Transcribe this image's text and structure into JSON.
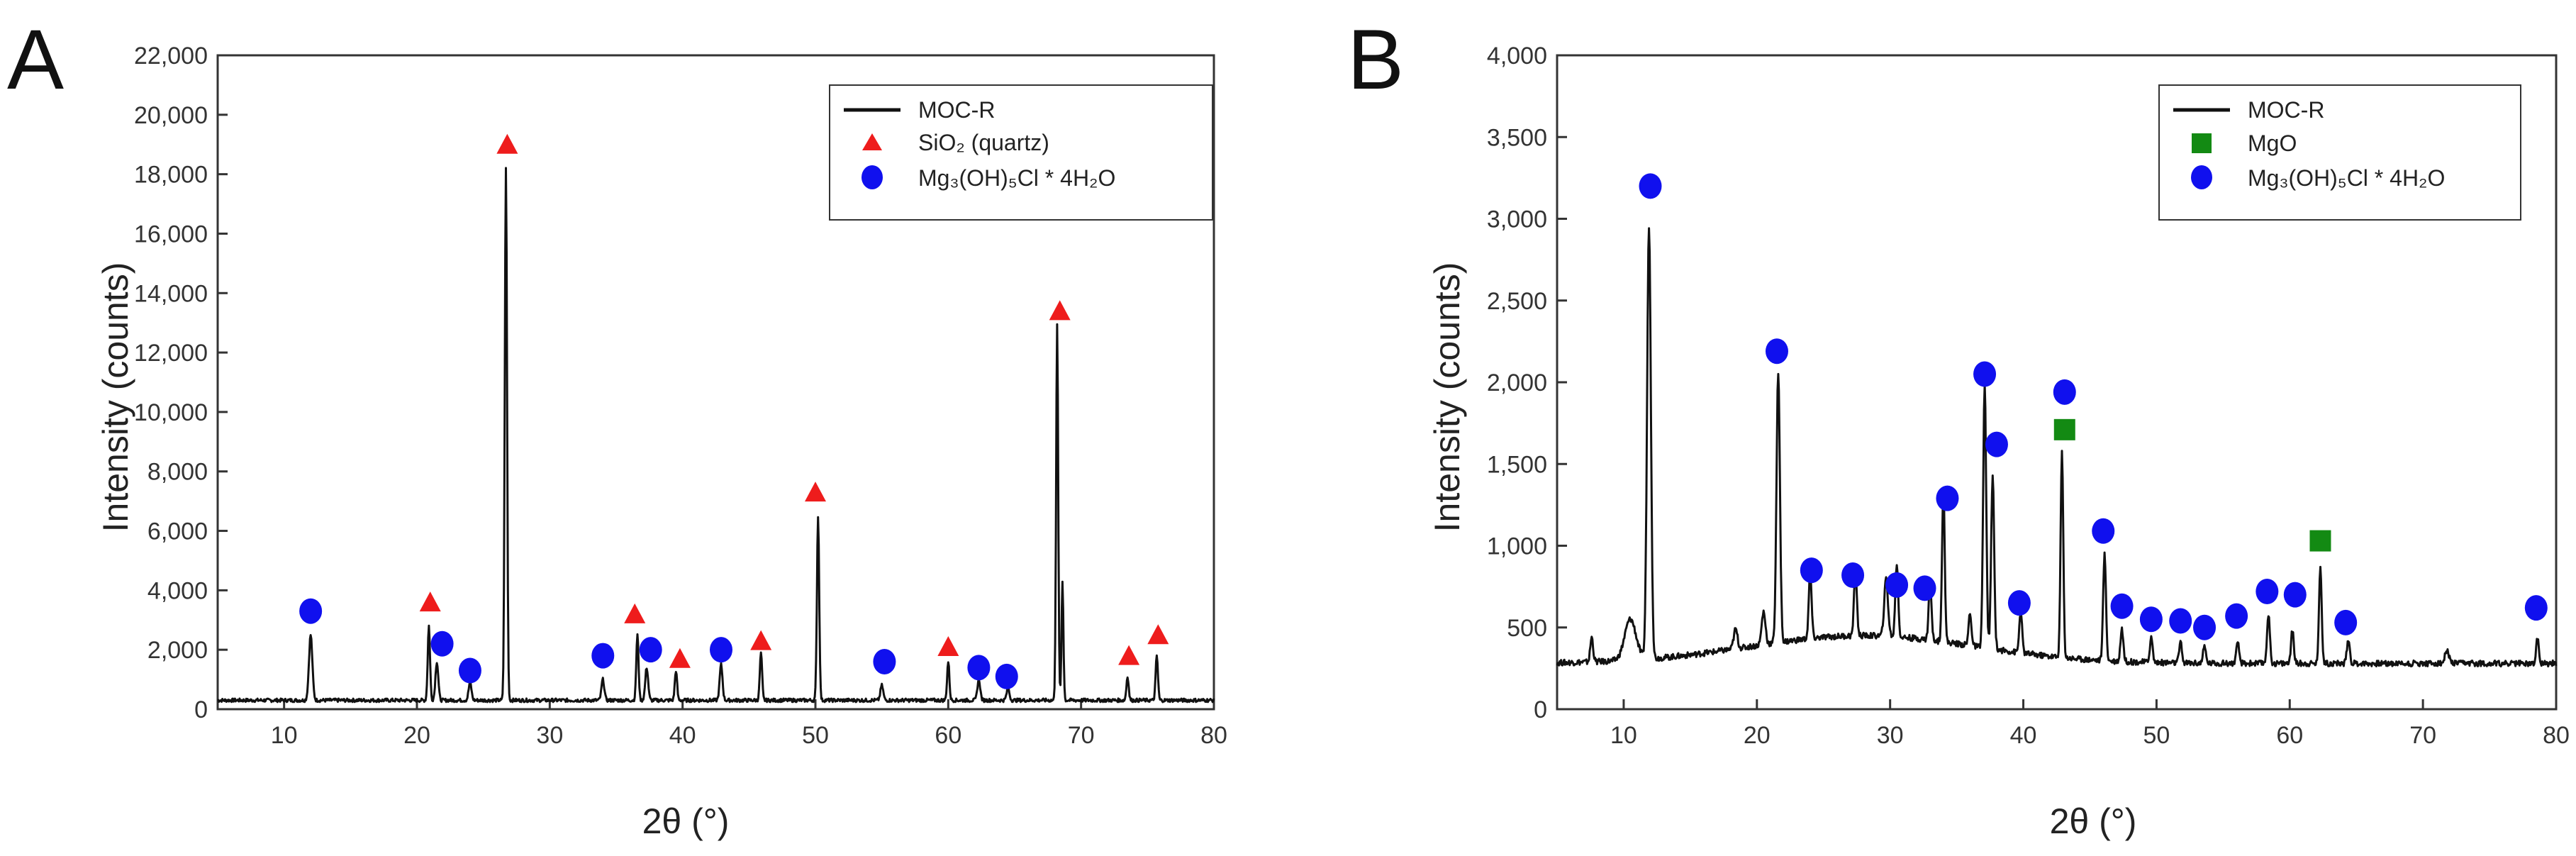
{
  "chart_data": [
    {
      "type": "line",
      "panel_label": "A",
      "title": "",
      "xlabel": "2θ (°)",
      "ylabel": "Intensity (counts)",
      "xlim": [
        5,
        80
      ],
      "ylim": [
        0,
        22000
      ],
      "x_ticks": [
        10,
        20,
        30,
        40,
        50,
        60,
        70,
        80
      ],
      "y_ticks": [
        0,
        2000,
        4000,
        6000,
        8000,
        10000,
        12000,
        14000,
        16000,
        18000,
        20000,
        22000
      ],
      "y_tick_labels": [
        "0",
        "2,000",
        "4,000",
        "6,000",
        "8,000",
        "10,000",
        "12,000",
        "14,000",
        "16,000",
        "18,000",
        "20,000",
        "22,000"
      ],
      "legend": {
        "placement": "top-right",
        "entries": [
          {
            "label": "MOC-R",
            "marker": "line",
            "color": "#111111"
          },
          {
            "label": "SiO₂ (quartz)",
            "marker": "triangle",
            "color": "#ee1c1c"
          },
          {
            "label": "Mg₃(OH)₅Cl * 4H₂O",
            "marker": "circle",
            "color": "#1010ee"
          }
        ]
      },
      "series": [
        {
          "name": "MOC-R",
          "color": "#111111",
          "baseline": 300,
          "noise": 60,
          "peaks": [
            {
              "x": 12.0,
              "y": 2200,
              "w": 0.18
            },
            {
              "x": 20.9,
              "y": 2500,
              "w": 0.12
            },
            {
              "x": 21.5,
              "y": 1300,
              "w": 0.15
            },
            {
              "x": 24.0,
              "y": 600,
              "w": 0.15
            },
            {
              "x": 26.7,
              "y": 17900,
              "w": 0.12
            },
            {
              "x": 34.0,
              "y": 700,
              "w": 0.15
            },
            {
              "x": 36.6,
              "y": 2200,
              "w": 0.12
            },
            {
              "x": 37.3,
              "y": 1100,
              "w": 0.15
            },
            {
              "x": 39.5,
              "y": 1000,
              "w": 0.12
            },
            {
              "x": 42.9,
              "y": 1200,
              "w": 0.15
            },
            {
              "x": 45.9,
              "y": 1600,
              "w": 0.12
            },
            {
              "x": 50.2,
              "y": 6200,
              "w": 0.12
            },
            {
              "x": 55.0,
              "y": 500,
              "w": 0.15
            },
            {
              "x": 60.0,
              "y": 1300,
              "w": 0.12
            },
            {
              "x": 62.3,
              "y": 700,
              "w": 0.15
            },
            {
              "x": 64.5,
              "y": 400,
              "w": 0.15
            },
            {
              "x": 68.2,
              "y": 12600,
              "w": 0.11
            },
            {
              "x": 68.6,
              "y": 4000,
              "w": 0.1
            },
            {
              "x": 73.5,
              "y": 800,
              "w": 0.12
            },
            {
              "x": 75.7,
              "y": 1500,
              "w": 0.12
            }
          ]
        }
      ],
      "markers": [
        {
          "phase": "Mg₃(OH)₅Cl * 4H₂O",
          "shape": "circle",
          "x": 12.0,
          "y": 3300
        },
        {
          "phase": "SiO₂ (quartz)",
          "shape": "triangle",
          "x": 21.0,
          "y": 3600
        },
        {
          "phase": "Mg₃(OH)₅Cl * 4H₂O",
          "shape": "circle",
          "x": 21.9,
          "y": 2200
        },
        {
          "phase": "Mg₃(OH)₅Cl * 4H₂O",
          "shape": "circle",
          "x": 24.0,
          "y": 1300
        },
        {
          "phase": "SiO₂ (quartz)",
          "shape": "triangle",
          "x": 26.8,
          "y": 19000
        },
        {
          "phase": "Mg₃(OH)₅Cl * 4H₂O",
          "shape": "circle",
          "x": 34.0,
          "y": 1800
        },
        {
          "phase": "SiO₂ (quartz)",
          "shape": "triangle",
          "x": 36.4,
          "y": 3200
        },
        {
          "phase": "Mg₃(OH)₅Cl * 4H₂O",
          "shape": "circle",
          "x": 37.6,
          "y": 2000
        },
        {
          "phase": "SiO₂ (quartz)",
          "shape": "triangle",
          "x": 39.8,
          "y": 1700
        },
        {
          "phase": "Mg₃(OH)₅Cl * 4H₂O",
          "shape": "circle",
          "x": 42.9,
          "y": 2000
        },
        {
          "phase": "SiO₂ (quartz)",
          "shape": "triangle",
          "x": 45.9,
          "y": 2300
        },
        {
          "phase": "SiO₂ (quartz)",
          "shape": "triangle",
          "x": 50.0,
          "y": 7300
        },
        {
          "phase": "Mg₃(OH)₅Cl * 4H₂O",
          "shape": "circle",
          "x": 55.2,
          "y": 1600
        },
        {
          "phase": "SiO₂ (quartz)",
          "shape": "triangle",
          "x": 60.0,
          "y": 2100
        },
        {
          "phase": "Mg₃(OH)₅Cl * 4H₂O",
          "shape": "circle",
          "x": 62.3,
          "y": 1400
        },
        {
          "phase": "Mg₃(OH)₅Cl * 4H₂O",
          "shape": "circle",
          "x": 64.4,
          "y": 1100
        },
        {
          "phase": "SiO₂ (quartz)",
          "shape": "triangle",
          "x": 68.4,
          "y": 13400
        },
        {
          "phase": "SiO₂ (quartz)",
          "shape": "triangle",
          "x": 73.6,
          "y": 1800
        },
        {
          "phase": "SiO₂ (quartz)",
          "shape": "triangle",
          "x": 75.8,
          "y": 2500
        }
      ]
    },
    {
      "type": "line",
      "panel_label": "B",
      "title": "",
      "xlabel": "2θ (°)",
      "ylabel": "Intensity (counts)",
      "xlim": [
        5,
        80
      ],
      "ylim": [
        0,
        4000
      ],
      "x_ticks": [
        10,
        20,
        30,
        40,
        50,
        60,
        70,
        80
      ],
      "y_ticks": [
        0,
        500,
        1000,
        1500,
        2000,
        2500,
        3000,
        3500,
        4000
      ],
      "y_tick_labels": [
        "0",
        "500",
        "1,000",
        "1,500",
        "2,000",
        "2,500",
        "3,000",
        "3,500",
        "4,000"
      ],
      "legend": {
        "placement": "top-right",
        "entries": [
          {
            "label": "MOC-R",
            "marker": "line",
            "color": "#111111"
          },
          {
            "label": "MgO",
            "marker": "square",
            "color": "#138a13"
          },
          {
            "label": "Mg₃(OH)₅Cl * 4H₂O",
            "marker": "circle",
            "color": "#1010ee"
          }
        ]
      },
      "series": [
        {
          "name": "MOC-R",
          "color": "#111111",
          "baseline": 280,
          "noise": 18,
          "hump": {
            "center": 28,
            "height": 170,
            "width": 12
          },
          "peaks": [
            {
              "x": 7.6,
              "y": 150,
              "w": 0.15
            },
            {
              "x": 10.5,
              "y": 250,
              "w": 0.6
            },
            {
              "x": 11.9,
              "y": 2650,
              "w": 0.2
            },
            {
              "x": 18.4,
              "y": 120,
              "w": 0.2
            },
            {
              "x": 20.5,
              "y": 200,
              "w": 0.2
            },
            {
              "x": 21.6,
              "y": 1650,
              "w": 0.18
            },
            {
              "x": 24.0,
              "y": 400,
              "w": 0.15
            },
            {
              "x": 27.4,
              "y": 400,
              "w": 0.15
            },
            {
              "x": 29.7,
              "y": 350,
              "w": 0.2
            },
            {
              "x": 30.5,
              "y": 450,
              "w": 0.15
            },
            {
              "x": 33.0,
              "y": 350,
              "w": 0.15
            },
            {
              "x": 34.0,
              "y": 950,
              "w": 0.14
            },
            {
              "x": 36.0,
              "y": 200,
              "w": 0.15
            },
            {
              "x": 37.1,
              "y": 1600,
              "w": 0.16
            },
            {
              "x": 37.7,
              "y": 1050,
              "w": 0.16
            },
            {
              "x": 39.8,
              "y": 250,
              "w": 0.15
            },
            {
              "x": 42.9,
              "y": 1250,
              "w": 0.14
            },
            {
              "x": 46.1,
              "y": 650,
              "w": 0.15
            },
            {
              "x": 47.4,
              "y": 200,
              "w": 0.15
            },
            {
              "x": 49.6,
              "y": 150,
              "w": 0.15
            },
            {
              "x": 51.8,
              "y": 120,
              "w": 0.15
            },
            {
              "x": 53.6,
              "y": 100,
              "w": 0.15
            },
            {
              "x": 56.1,
              "y": 120,
              "w": 0.15
            },
            {
              "x": 58.4,
              "y": 300,
              "w": 0.15
            },
            {
              "x": 60.2,
              "y": 200,
              "w": 0.15
            },
            {
              "x": 62.3,
              "y": 600,
              "w": 0.14
            },
            {
              "x": 64.4,
              "y": 150,
              "w": 0.15
            },
            {
              "x": 71.8,
              "y": 80,
              "w": 0.2
            },
            {
              "x": 78.6,
              "y": 150,
              "w": 0.15
            }
          ]
        }
      ],
      "markers": [
        {
          "phase": "Mg₃(OH)₅Cl * 4H₂O",
          "shape": "circle",
          "x": 12.0,
          "y": 3200
        },
        {
          "phase": "Mg₃(OH)₅Cl * 4H₂O",
          "shape": "circle",
          "x": 21.5,
          "y": 2190
        },
        {
          "phase": "Mg₃(OH)₅Cl * 4H₂O",
          "shape": "circle",
          "x": 24.1,
          "y": 850
        },
        {
          "phase": "Mg₃(OH)₅Cl * 4H₂O",
          "shape": "circle",
          "x": 27.2,
          "y": 820
        },
        {
          "phase": "Mg₃(OH)₅Cl * 4H₂O",
          "shape": "circle",
          "x": 30.5,
          "y": 760
        },
        {
          "phase": "Mg₃(OH)₅Cl * 4H₂O",
          "shape": "circle",
          "x": 32.6,
          "y": 740
        },
        {
          "phase": "Mg₃(OH)₅Cl * 4H₂O",
          "shape": "circle",
          "x": 34.3,
          "y": 1290
        },
        {
          "phase": "Mg₃(OH)₅Cl * 4H₂O",
          "shape": "circle",
          "x": 37.1,
          "y": 2050
        },
        {
          "phase": "Mg₃(OH)₅Cl * 4H₂O",
          "shape": "circle",
          "x": 38.0,
          "y": 1620
        },
        {
          "phase": "Mg₃(OH)₅Cl * 4H₂O",
          "shape": "circle",
          "x": 39.7,
          "y": 650
        },
        {
          "phase": "Mg₃(OH)₅Cl * 4H₂O",
          "shape": "circle",
          "x": 43.1,
          "y": 1940
        },
        {
          "phase": "MgO",
          "shape": "square",
          "x": 43.1,
          "y": 1710
        },
        {
          "phase": "Mg₃(OH)₅Cl * 4H₂O",
          "shape": "circle",
          "x": 46.0,
          "y": 1090
        },
        {
          "phase": "Mg₃(OH)₅Cl * 4H₂O",
          "shape": "circle",
          "x": 47.4,
          "y": 630
        },
        {
          "phase": "Mg₃(OH)₅Cl * 4H₂O",
          "shape": "circle",
          "x": 49.6,
          "y": 550
        },
        {
          "phase": "Mg₃(OH)₅Cl * 4H₂O",
          "shape": "circle",
          "x": 51.8,
          "y": 540
        },
        {
          "phase": "Mg₃(OH)₅Cl * 4H₂O",
          "shape": "circle",
          "x": 53.6,
          "y": 500
        },
        {
          "phase": "Mg₃(OH)₅Cl * 4H₂O",
          "shape": "circle",
          "x": 56.0,
          "y": 570
        },
        {
          "phase": "Mg₃(OH)₅Cl * 4H₂O",
          "shape": "circle",
          "x": 58.3,
          "y": 720
        },
        {
          "phase": "Mg₃(OH)₅Cl * 4H₂O",
          "shape": "circle",
          "x": 60.4,
          "y": 700
        },
        {
          "phase": "MgO",
          "shape": "square",
          "x": 62.3,
          "y": 1030
        },
        {
          "phase": "Mg₃(OH)₅Cl * 4H₂O",
          "shape": "circle",
          "x": 64.2,
          "y": 530
        },
        {
          "phase": "Mg₃(OH)₅Cl * 4H₂O",
          "shape": "circle",
          "x": 78.5,
          "y": 620
        }
      ]
    }
  ]
}
